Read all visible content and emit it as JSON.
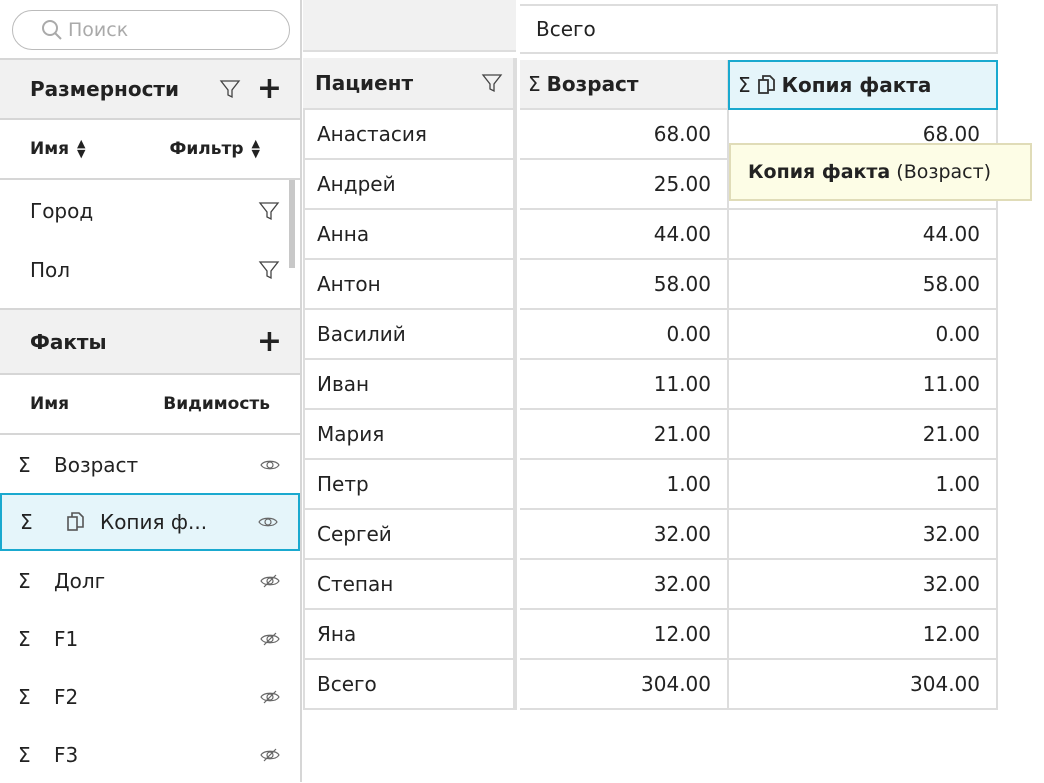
{
  "search": {
    "placeholder": "Поиск"
  },
  "dimensions": {
    "title": "Размерности",
    "col_name": "Имя",
    "col_filter": "Фильтр",
    "items": [
      {
        "label": "Город"
      },
      {
        "label": "Пол"
      }
    ]
  },
  "facts": {
    "title": "Факты",
    "col_name": "Имя",
    "col_visibility": "Видимость",
    "items": [
      {
        "label": "Возраст",
        "visible": true
      },
      {
        "label": "Копия ф...",
        "visible": true,
        "copy": true,
        "selected": true
      },
      {
        "label": "Долг",
        "visible": false
      },
      {
        "label": "F1",
        "visible": false
      },
      {
        "label": "F2",
        "visible": false
      },
      {
        "label": "F3",
        "visible": false
      }
    ]
  },
  "table": {
    "top_header": "Всего",
    "row_header": "Пациент",
    "columns": [
      "Возраст",
      "Копия факта"
    ],
    "rows": [
      {
        "name": "Анастасия",
        "v1": "68.00",
        "v2": "68.00"
      },
      {
        "name": "Андрей",
        "v1": "25.00",
        "v2": ""
      },
      {
        "name": "Анна",
        "v1": "44.00",
        "v2": "44.00"
      },
      {
        "name": "Антон",
        "v1": "58.00",
        "v2": "58.00"
      },
      {
        "name": "Василий",
        "v1": "0.00",
        "v2": "0.00"
      },
      {
        "name": "Иван",
        "v1": "11.00",
        "v2": "11.00"
      },
      {
        "name": "Мария",
        "v1": "21.00",
        "v2": "21.00"
      },
      {
        "name": "Петр",
        "v1": "1.00",
        "v2": "1.00"
      },
      {
        "name": "Сергей",
        "v1": "32.00",
        "v2": "32.00"
      },
      {
        "name": "Степан",
        "v1": "32.00",
        "v2": "32.00"
      },
      {
        "name": "Яна",
        "v1": "12.00",
        "v2": "12.00"
      },
      {
        "name": "Всего",
        "v1": "304.00",
        "v2": "304.00"
      }
    ]
  },
  "tooltip": {
    "bold": "Копия факта",
    "rest": " (Возраст)"
  },
  "colors": {
    "accent": "#1aa9cf",
    "selected_bg": "#e5f5fa",
    "tooltip_bg": "#fdfde6"
  }
}
